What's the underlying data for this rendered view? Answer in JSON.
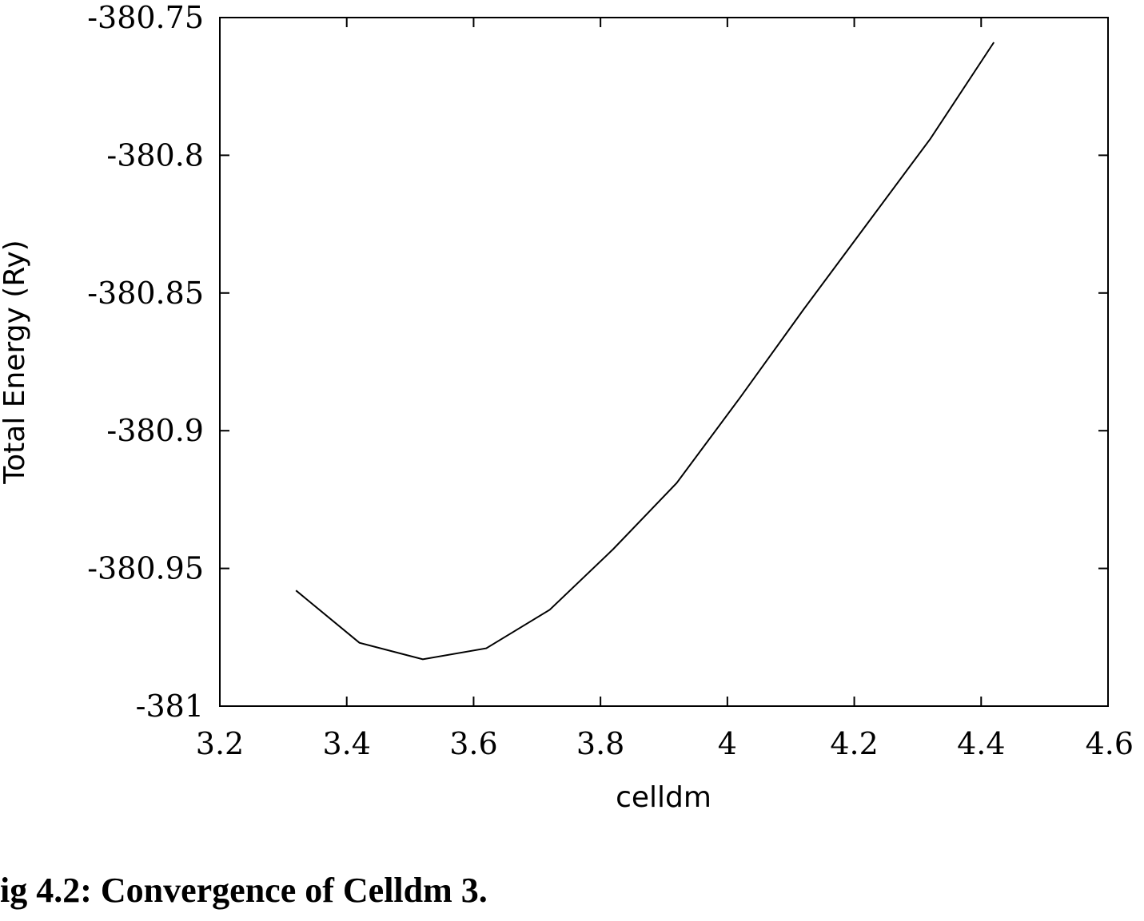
{
  "chart_data": {
    "type": "line",
    "title": "",
    "xlabel": "celldm",
    "ylabel": "Total Energy (Ry)",
    "xlim": [
      3.2,
      4.6
    ],
    "ylim": [
      -381,
      -380.75
    ],
    "xticks": [
      "3.2",
      "3.4",
      "3.6",
      "3.8",
      "4",
      "4.2",
      "4.4",
      "4.6"
    ],
    "yticks": [
      "-380.75",
      "-380.8",
      "-380.85",
      "-380.9",
      "-380.95",
      "-381"
    ],
    "grid": false,
    "legend": "none",
    "series": [
      {
        "x": [
          3.32,
          3.42,
          3.52,
          3.62,
          3.72,
          3.82,
          3.92,
          4.02,
          4.12,
          4.22,
          4.32,
          4.42
        ],
        "y": [
          -380.958,
          -380.977,
          -380.983,
          -380.979,
          -380.965,
          -380.943,
          -380.919,
          -380.888,
          -380.856,
          -380.825,
          -380.794,
          -380.759
        ]
      }
    ],
    "line_color": "#000000"
  },
  "caption": "ig 4.2: Convergence of Celldm 3."
}
